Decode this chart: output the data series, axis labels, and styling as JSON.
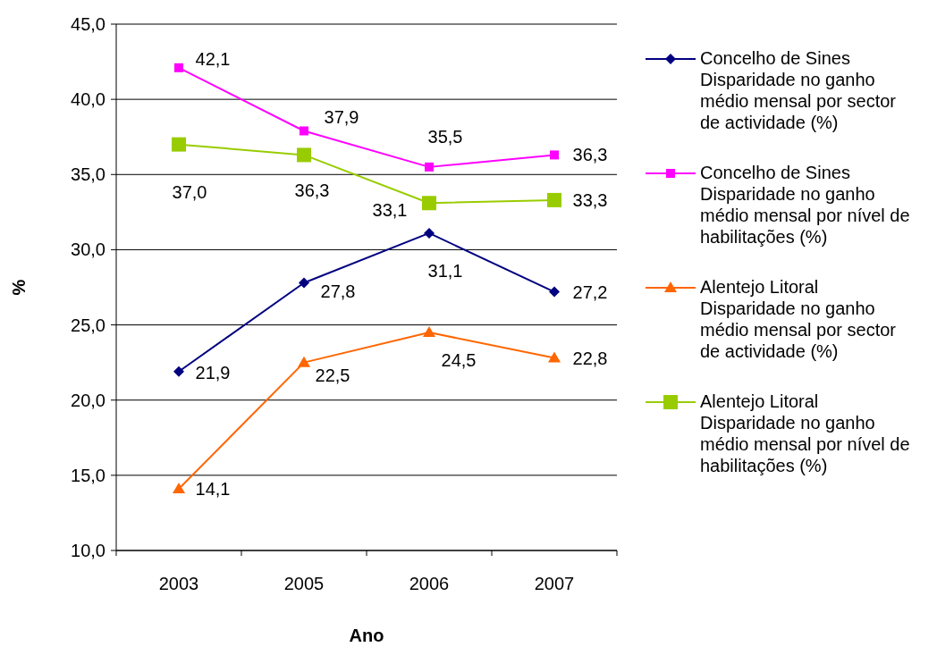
{
  "chart_data": {
    "type": "line",
    "xlabel": "Ano",
    "ylabel": "%",
    "categories": [
      "2003",
      "2005",
      "2006",
      "2007"
    ],
    "ylim": [
      10,
      45
    ],
    "yticks": [
      {
        "value": 10,
        "label": "10,0"
      },
      {
        "value": 15,
        "label": "15,0"
      },
      {
        "value": 20,
        "label": "20,0"
      },
      {
        "value": 25,
        "label": "25,0"
      },
      {
        "value": 30,
        "label": "30,0"
      },
      {
        "value": 35,
        "label": "35,0"
      },
      {
        "value": 40,
        "label": "40,0"
      },
      {
        "value": 45,
        "label": "45,0"
      }
    ],
    "grid": "y",
    "legend": "right",
    "series": [
      {
        "name": "Concelho de Sines Disparidade no ganho médio mensal por sector de actividade (%)",
        "color": "#000080",
        "marker": "diamond",
        "values": [
          21.9,
          27.8,
          31.1,
          27.2
        ],
        "value_labels": [
          "21,9",
          "27,8",
          "31,1",
          "27,2"
        ]
      },
      {
        "name": "Concelho de Sines Disparidade no ganho médio mensal por nível de habilitações (%)",
        "color": "#ff00ff",
        "marker": "square",
        "values": [
          42.1,
          37.9,
          35.5,
          36.3
        ],
        "value_labels": [
          "42,1",
          "37,9",
          "35,5",
          "36,3"
        ]
      },
      {
        "name": "Alentejo Litoral Disparidade no ganho médio mensal por sector de actividade (%)",
        "color": "#ff6600",
        "marker": "triangle",
        "values": [
          14.1,
          22.5,
          24.5,
          22.8
        ],
        "value_labels": [
          "14,1",
          "22,5",
          "24,5",
          "22,8"
        ]
      },
      {
        "name": "Alentejo Litoral Disparidade no ganho médio mensal por nível de habilitações (%)",
        "color": "#99cc00",
        "marker": "square",
        "values": [
          37.0,
          36.3,
          33.1,
          33.3
        ],
        "value_labels": [
          "37,0",
          "36,3",
          "33,1",
          "33,3"
        ]
      }
    ]
  }
}
